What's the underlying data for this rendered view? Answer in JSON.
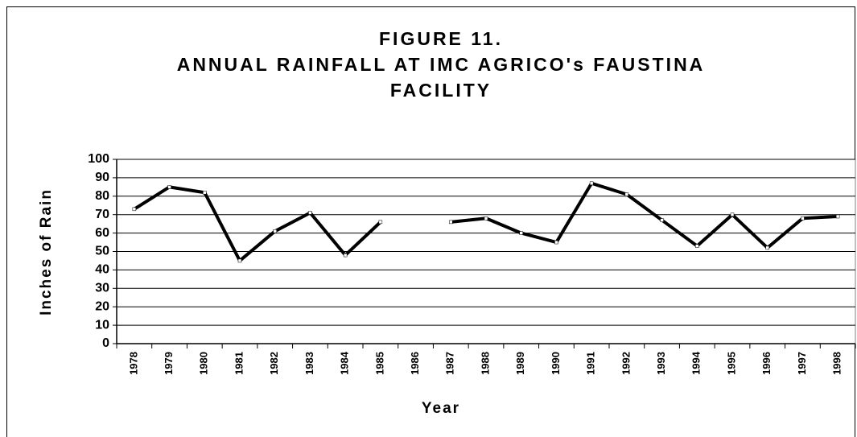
{
  "chart_data": {
    "type": "line",
    "title": [
      "FIGURE 11.",
      "ANNUAL RAINFALL AT IMC AGRICO's FAUSTINA",
      "FACILITY"
    ],
    "x_label": "Year",
    "y_label": "Inches of Rain",
    "categories": [
      "1978",
      "1979",
      "1980",
      "1981",
      "1982",
      "1983",
      "1984",
      "1985",
      "1986",
      "1987",
      "1988",
      "1989",
      "1990",
      "1991",
      "1992",
      "1993",
      "1994",
      "1995",
      "1996",
      "1997",
      "1998"
    ],
    "values": [
      73,
      85,
      82,
      45,
      61,
      71,
      48,
      66,
      null,
      66,
      68,
      60,
      55,
      87,
      81,
      67,
      53,
      70,
      52,
      68,
      69
    ],
    "color": "#000000",
    "ylim": [
      0,
      100
    ],
    "yticks": [
      0,
      10,
      20,
      30,
      40,
      50,
      60,
      70,
      80,
      90,
      100
    ],
    "grid": true
  }
}
